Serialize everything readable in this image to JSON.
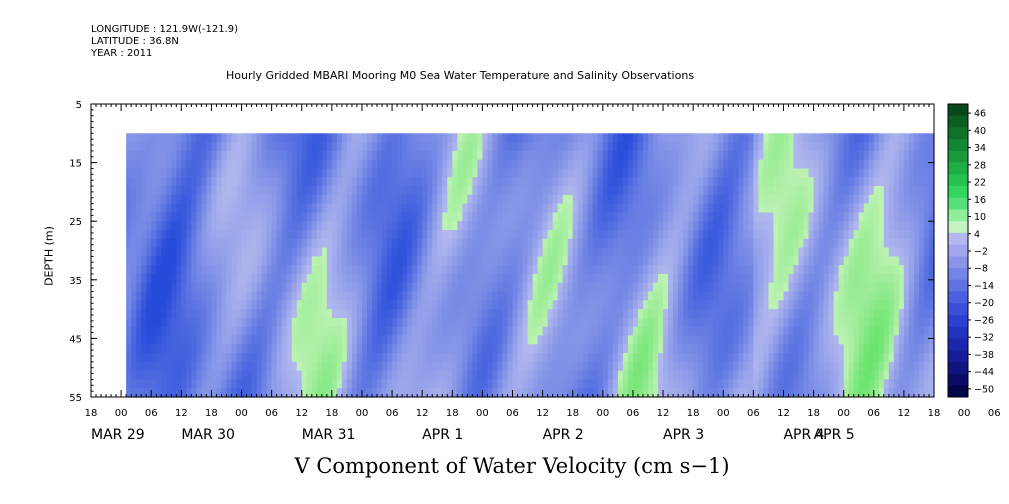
{
  "header": {
    "longitude": "LONGITUDE : 121.9W(-121.9)",
    "latitude": "LATITUDE : 36.8N",
    "year": "YEAR : 2011"
  },
  "chart_data": {
    "type": "heatmap",
    "title": "Hourly Gridded MBARI Mooring M0 Sea Water Temperature and Salinity Observations",
    "xlabel": "V Component of Water Velocity (cm s−1)",
    "ylabel": "DEPTH (m)",
    "y_ticks": [
      "5",
      "15",
      "25",
      "35",
      "45",
      "55"
    ],
    "ylim": [
      5,
      55
    ],
    "y_reversed": true,
    "data_depth_range": [
      10,
      55
    ],
    "x_hour_ticks": [
      "18",
      "00",
      "06",
      "12",
      "18",
      "00",
      "06",
      "12",
      "18",
      "00",
      "06",
      "12",
      "18",
      "00",
      "06",
      "12",
      "18",
      "00",
      "06",
      "12",
      "18",
      "00",
      "06",
      "12",
      "18",
      "00",
      "06",
      "12",
      "18",
      "00",
      "06",
      "12"
    ],
    "x_day_labels": [
      "MAR 29",
      "MAR 30",
      "MAR 31",
      "APR 1",
      "APR 2",
      "APR 3",
      "APR 4",
      "APR 5"
    ],
    "x_range_hours": [
      -6,
      162
    ],
    "data_start_hour": 1,
    "colorbar": {
      "labels": [
        "46",
        "40",
        "34",
        "28",
        "22",
        "16",
        "10",
        "4",
        "−2",
        "−8",
        "−14",
        "−20",
        "−26",
        "−32",
        "−38",
        "−44",
        "−50"
      ],
      "colors": [
        "#0a4a1a",
        "#0d5e22",
        "#10722a",
        "#138633",
        "#189a3c",
        "#1eae45",
        "#26c24f",
        "#33d55c",
        "#55e07a",
        "#8fee9a",
        "#c4f2c0",
        "#b3b8f2",
        "#9fa6ee",
        "#8a95ea",
        "#7583e6",
        "#6071e2",
        "#4c5fde",
        "#3a4fd8",
        "#2a40d0",
        "#2333c0",
        "#1c27ad",
        "#161d98",
        "#101480",
        "#0a0c66",
        "#05054a"
      ]
    },
    "series_note": "V velocity field, mostly negative (blue, -20 to -5) with positive streaks (green, 0 to 12)"
  }
}
